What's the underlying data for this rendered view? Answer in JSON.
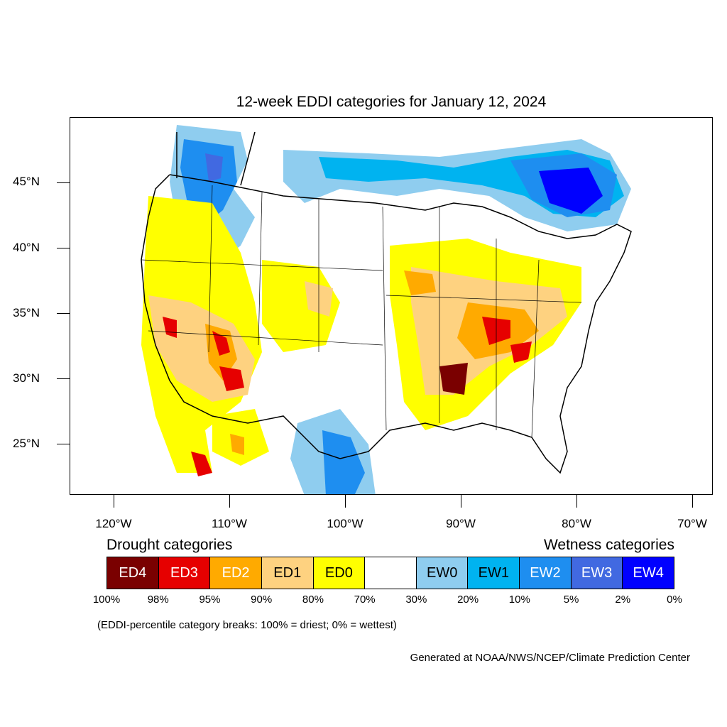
{
  "map": {
    "title": "12-week EDDI categories for January 12, 2024",
    "lat_labels": [
      "45°N",
      "40°N",
      "35°N",
      "30°N",
      "25°N"
    ],
    "lon_labels": [
      "120°W",
      "110°W",
      "100°W",
      "90°W",
      "80°W",
      "70°W"
    ]
  },
  "legend": {
    "drought_title": "Drought categories",
    "wetness_title": "Wetness categories",
    "categories": [
      {
        "label": "ED4",
        "color": "#7a0000",
        "text_color": "#ffffff"
      },
      {
        "label": "ED3",
        "color": "#e60000",
        "text_color": "#ffffff"
      },
      {
        "label": "ED2",
        "color": "#ffaa00",
        "text_color": "#ffffff"
      },
      {
        "label": "ED1",
        "color": "#fed280",
        "text_color": "#000000"
      },
      {
        "label": "ED0",
        "color": "#ffff00",
        "text_color": "#000000"
      },
      {
        "label": "",
        "color": "#ffffff",
        "text_color": "#000000"
      },
      {
        "label": "EW0",
        "color": "#8fcdef",
        "text_color": "#000000"
      },
      {
        "label": "EW1",
        "color": "#00b3f0",
        "text_color": "#000000"
      },
      {
        "label": "EW2",
        "color": "#1e8ef0",
        "text_color": "#ffffff"
      },
      {
        "label": "EW3",
        "color": "#4169e1",
        "text_color": "#ffffff"
      },
      {
        "label": "EW4",
        "color": "#0000ff",
        "text_color": "#ffffff"
      }
    ],
    "percent_breaks": [
      "100%",
      "98%",
      "95%",
      "90%",
      "80%",
      "70%",
      "30%",
      "20%",
      "10%",
      "5%",
      "2%",
      "0%"
    ]
  },
  "note": "(EDDI-percentile category breaks: 100% = driest; 0% = wettest)",
  "credit": "Generated at NOAA/NWS/NCEP/Climate Prediction Center"
}
